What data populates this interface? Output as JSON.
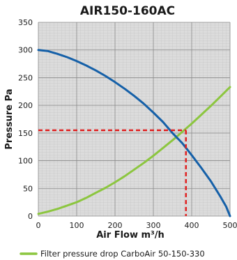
{
  "chart_data": {
    "type": "line",
    "title": "AIR150-160AC",
    "xlabel": "Air Flow m³/h",
    "ylabel": "Pressure Pa",
    "xlim": [
      0,
      500
    ],
    "ylim": [
      0,
      350
    ],
    "xticks": [
      0,
      100,
      200,
      300,
      400,
      500
    ],
    "yticks": [
      0,
      50,
      100,
      150,
      200,
      250,
      300,
      350
    ],
    "grid": true,
    "legend_position": "bottom",
    "series": [
      {
        "color": "#1560a8",
        "x": [
          0,
          25,
          50,
          75,
          100,
          125,
          150,
          175,
          200,
          225,
          250,
          275,
          300,
          325,
          350,
          375,
          400,
          425,
          450,
          475,
          490,
          500
        ],
        "y": [
          300,
          298,
          293,
          287,
          280,
          272,
          263,
          253,
          242,
          230,
          217,
          203,
          187,
          170,
          150,
          132,
          110,
          87,
          63,
          35,
          17,
          0
        ]
      },
      {
        "name": "Filter pressure drop CarboAir 50-150-330",
        "color": "#8cc63f",
        "x": [
          0,
          25,
          50,
          75,
          100,
          125,
          150,
          175,
          200,
          225,
          250,
          275,
          300,
          325,
          350,
          375,
          400,
          425,
          450,
          475,
          500
        ],
        "y": [
          4,
          8,
          13,
          19,
          25,
          33,
          42,
          51,
          61,
          72,
          84,
          96,
          109,
          123,
          137,
          152,
          167,
          183,
          199,
          216,
          233
        ]
      }
    ],
    "annotation": {
      "type": "operating-point",
      "x": 385,
      "y": 155,
      "color": "#e02020"
    }
  }
}
